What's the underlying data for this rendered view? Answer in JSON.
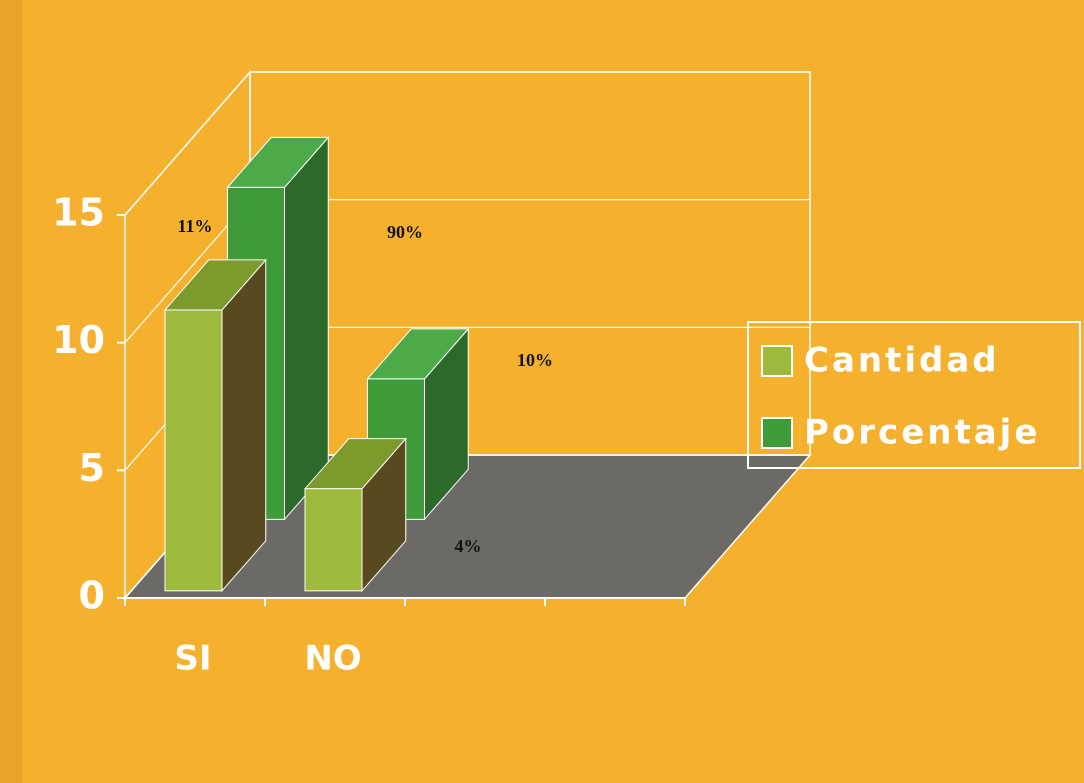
{
  "chart_data": {
    "type": "bar3d",
    "categories": [
      "SI",
      "NO"
    ],
    "series": [
      {
        "name": "Cantidad",
        "color": "#9dba3c",
        "values": [
          11,
          4
        ]
      },
      {
        "name": "Porcentaje",
        "color": "#3f9a3a",
        "values": [
          13,
          5.5
        ]
      }
    ],
    "ylim": [
      0,
      15
    ],
    "yticks": [
      0,
      5,
      10,
      15
    ],
    "annotations": [
      "11%",
      "90%",
      "10%",
      "4%"
    ],
    "legend": "right"
  }
}
